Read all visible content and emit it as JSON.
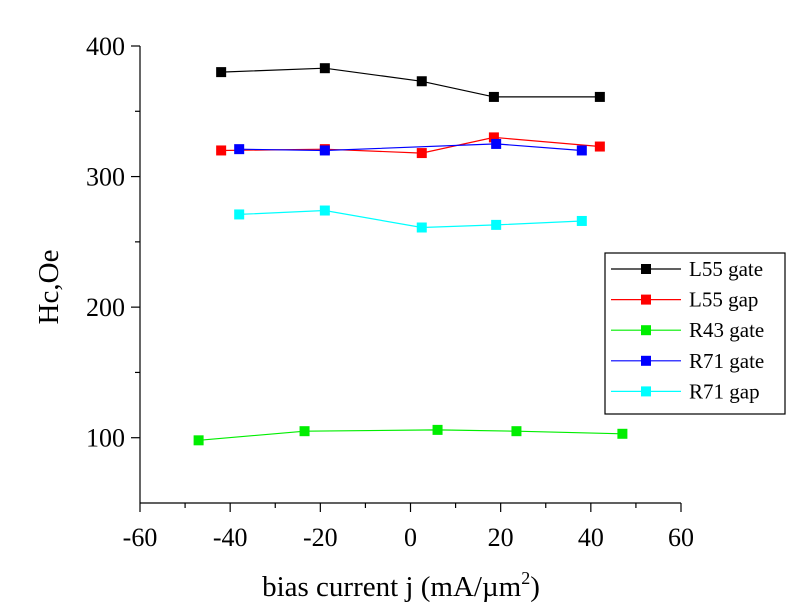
{
  "chart_data": {
    "type": "line",
    "xlabel": "bias current j (mA/µm",
    "xlabel_sup": "2",
    "xlabel_close": ")",
    "ylabel": "Hc,Oe",
    "xlim": [
      -60,
      60
    ],
    "ylim": [
      50,
      400
    ],
    "x_ticks": [
      -60,
      -40,
      -20,
      0,
      20,
      40,
      60
    ],
    "y_ticks": [
      100,
      200,
      300,
      400
    ],
    "grid": false,
    "legend_position": "right",
    "series": [
      {
        "name": "L55 gate",
        "color": "#000000",
        "x": [
          -42,
          -19,
          2.5,
          18.5,
          42
        ],
        "y": [
          380,
          383,
          373,
          361,
          361
        ]
      },
      {
        "name": "L55 gap",
        "color": "#ff0000",
        "x": [
          -42,
          -19,
          2.5,
          18.5,
          42
        ],
        "y": [
          320,
          321,
          318,
          330,
          323
        ]
      },
      {
        "name": "R43 gate",
        "color": "#00ee00",
        "x": [
          -47,
          -23.5,
          6,
          23.5,
          47
        ],
        "y": [
          98,
          105,
          106,
          105,
          103
        ]
      },
      {
        "name": "R71 gate",
        "color": "#0000ff",
        "x": [
          -38,
          -19,
          19,
          38
        ],
        "y": [
          321,
          320,
          325,
          320
        ]
      },
      {
        "name": "R71 gap",
        "color": "#00ffff",
        "x": [
          -38,
          -19,
          2.5,
          19,
          38
        ],
        "y": [
          271,
          274,
          261,
          263,
          266
        ]
      }
    ]
  }
}
